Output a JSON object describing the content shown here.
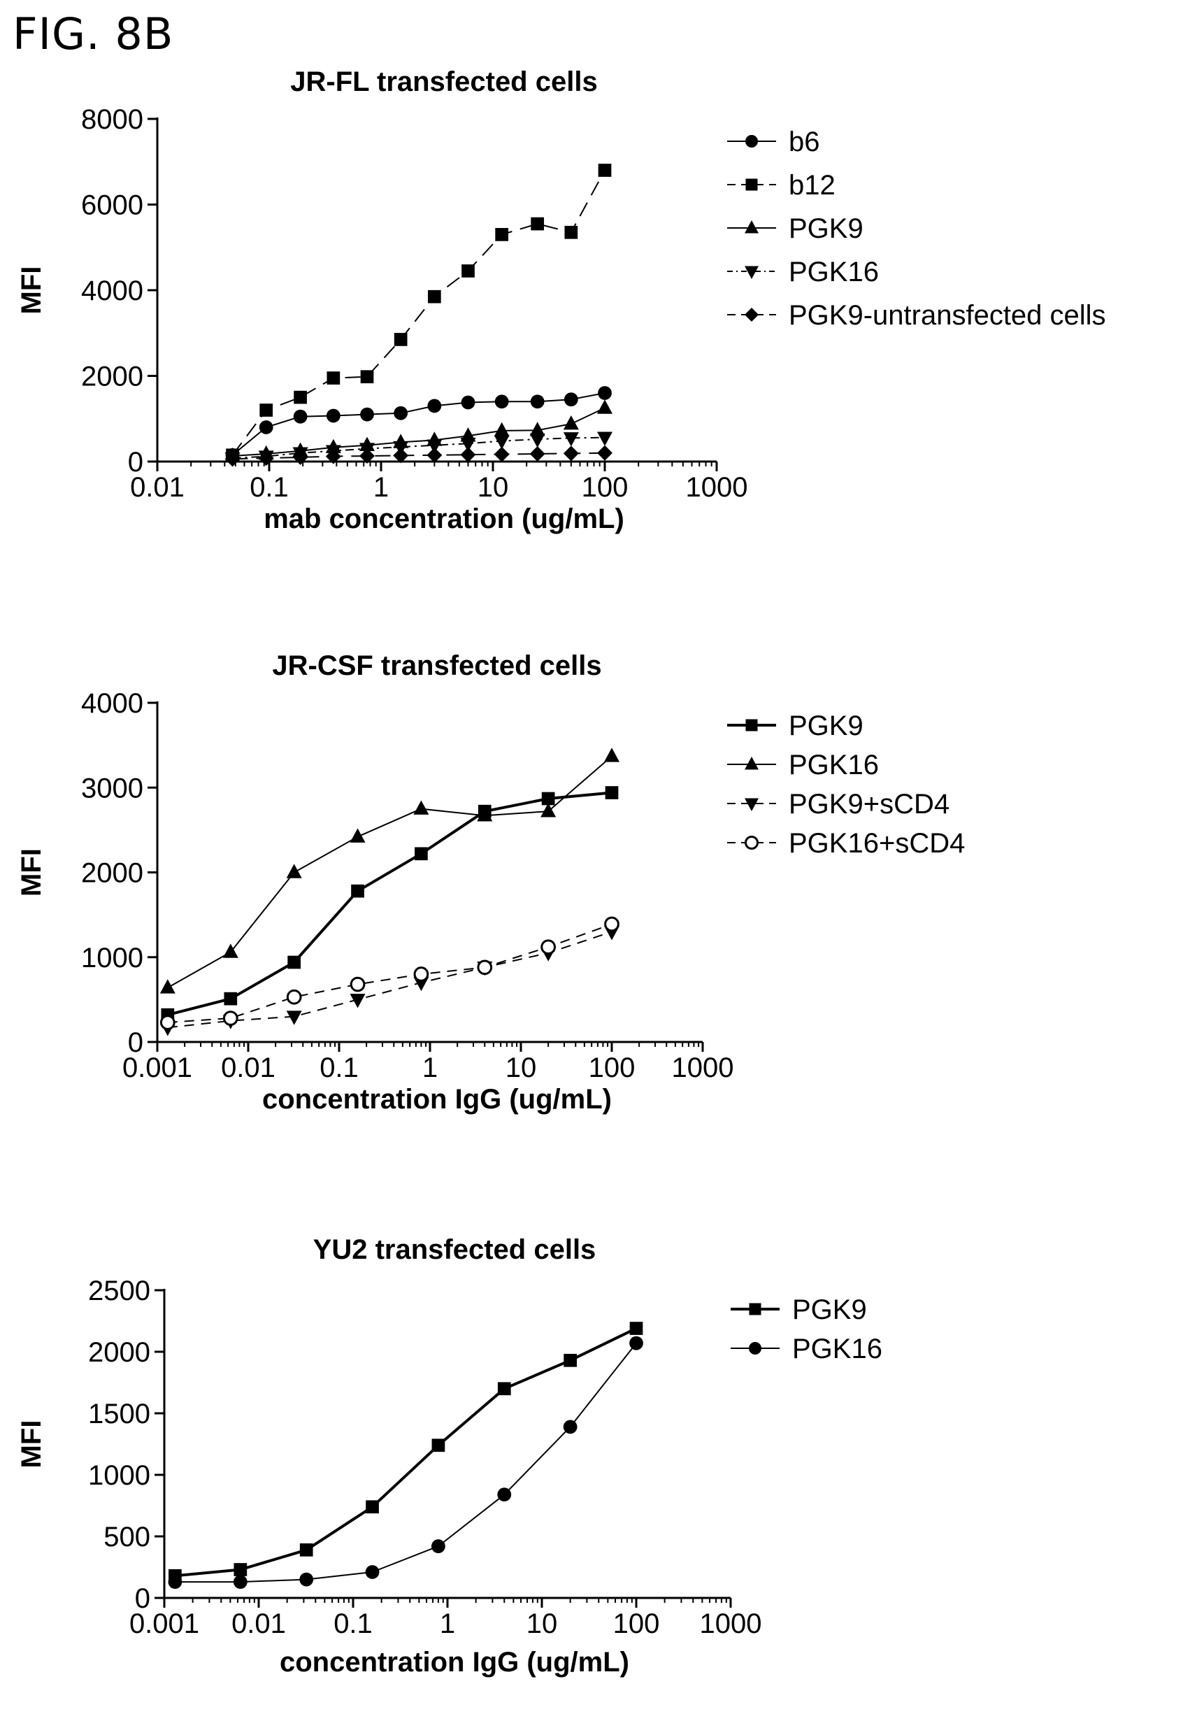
{
  "figure_label": "FIG. 8B",
  "chart_data": [
    {
      "type": "line",
      "title": "JR-FL transfected cells",
      "xlabel": "mab concentration (ug/mL)",
      "ylabel": "MFI",
      "xscale": "log",
      "xlim": [
        0.01,
        1000
      ],
      "ylim": [
        0,
        8000
      ],
      "xticks": [
        "0.01",
        "0.1",
        "1",
        "10",
        "100",
        "1000"
      ],
      "yticks": [
        "0",
        "2000",
        "4000",
        "6000",
        "8000"
      ],
      "legend": "right",
      "series": [
        {
          "name": "b6",
          "marker": "circle",
          "dash": "solid",
          "x": [
            0.047,
            0.094,
            0.19,
            0.375,
            0.75,
            1.5,
            3,
            6,
            12,
            25,
            50,
            100
          ],
          "y": [
            150,
            800,
            1050,
            1070,
            1100,
            1130,
            1300,
            1380,
            1400,
            1400,
            1450,
            1600
          ]
        },
        {
          "name": "b12",
          "marker": "square",
          "dash": "long-dash",
          "x": [
            0.047,
            0.094,
            0.19,
            0.375,
            0.75,
            1.5,
            3,
            6,
            12,
            25,
            50,
            100
          ],
          "y": [
            150,
            1200,
            1500,
            1950,
            1980,
            2850,
            3850,
            4450,
            5300,
            5550,
            5350,
            6800
          ]
        },
        {
          "name": "PGK9",
          "marker": "triangle-up",
          "dash": "solid",
          "x": [
            0.047,
            0.094,
            0.19,
            0.375,
            0.75,
            1.5,
            3,
            6,
            12,
            25,
            50,
            100
          ],
          "y": [
            130,
            180,
            250,
            330,
            380,
            450,
            500,
            600,
            720,
            730,
            880,
            1250
          ]
        },
        {
          "name": "PGK16",
          "marker": "triangle-down",
          "dash": "dash-dot",
          "x": [
            0.047,
            0.094,
            0.19,
            0.375,
            0.75,
            1.5,
            3,
            6,
            12,
            25,
            50,
            100
          ],
          "y": [
            80,
            120,
            200,
            250,
            300,
            340,
            380,
            420,
            480,
            520,
            550,
            560
          ]
        },
        {
          "name": "PGK9-untransfected cells",
          "marker": "diamond",
          "dash": "long-dash",
          "x": [
            0.047,
            0.094,
            0.19,
            0.375,
            0.75,
            1.5,
            3,
            6,
            12,
            25,
            50,
            100
          ],
          "y": [
            60,
            80,
            100,
            120,
            130,
            140,
            150,
            160,
            170,
            180,
            190,
            200
          ]
        }
      ]
    },
    {
      "type": "line",
      "title": "JR-CSF transfected cells",
      "xlabel": "concentration IgG (ug/mL)",
      "ylabel": "MFI",
      "xscale": "log",
      "xlim": [
        0.001,
        1000
      ],
      "ylim": [
        0,
        4000
      ],
      "xticks": [
        "0.001",
        "0.01",
        "0.1",
        "1",
        "10",
        "100",
        "1000"
      ],
      "yticks": [
        "0",
        "1000",
        "2000",
        "3000",
        "4000"
      ],
      "legend": "right",
      "series": [
        {
          "name": "PGK9",
          "marker": "square",
          "dash": "solid",
          "stroke_width": 4,
          "x": [
            0.0013,
            0.0064,
            0.032,
            0.16,
            0.8,
            4,
            20,
            100
          ],
          "y": [
            320,
            510,
            940,
            1780,
            2220,
            2720,
            2870,
            2940
          ]
        },
        {
          "name": "PGK16",
          "marker": "triangle-up",
          "dash": "solid",
          "stroke_width": 2,
          "x": [
            0.0013,
            0.0064,
            0.032,
            0.16,
            0.8,
            4,
            20,
            100
          ],
          "y": [
            640,
            1060,
            2000,
            2420,
            2750,
            2670,
            2720,
            3370
          ]
        },
        {
          "name": "PGK9+sCD4",
          "marker": "triangle-down",
          "dash": "dash",
          "stroke_width": 2,
          "x": [
            0.0013,
            0.0064,
            0.032,
            0.16,
            0.8,
            4,
            20,
            100
          ],
          "y": [
            170,
            250,
            300,
            500,
            700,
            880,
            1050,
            1300
          ]
        },
        {
          "name": "PGK16+sCD4",
          "marker": "open-circle",
          "dash": "dash",
          "stroke_width": 2,
          "x": [
            0.0013,
            0.0064,
            0.032,
            0.16,
            0.8,
            4,
            20,
            100
          ],
          "y": [
            230,
            280,
            530,
            680,
            800,
            880,
            1120,
            1390
          ]
        }
      ]
    },
    {
      "type": "line",
      "title": "YU2 transfected cells",
      "xlabel": "concentration IgG (ug/mL)",
      "ylabel": "MFI",
      "xscale": "log",
      "xlim": [
        0.001,
        1000
      ],
      "ylim": [
        0,
        2500
      ],
      "xticks": [
        "0.001",
        "0.01",
        "0.1",
        "1",
        "10",
        "100",
        "1000"
      ],
      "yticks": [
        "0",
        "500",
        "1000",
        "1500",
        "2000",
        "2500"
      ],
      "legend": "right",
      "series": [
        {
          "name": "PGK9",
          "marker": "square",
          "dash": "solid",
          "stroke_width": 4,
          "x": [
            0.0013,
            0.0064,
            0.032,
            0.16,
            0.8,
            4,
            20,
            100
          ],
          "y": [
            180,
            230,
            390,
            740,
            1240,
            1700,
            1930,
            2190
          ]
        },
        {
          "name": "PGK16",
          "marker": "circle",
          "dash": "solid",
          "stroke_width": 2,
          "x": [
            0.0013,
            0.0064,
            0.032,
            0.16,
            0.8,
            4,
            20,
            100
          ],
          "y": [
            130,
            130,
            150,
            210,
            420,
            840,
            1390,
            2070
          ]
        }
      ]
    }
  ]
}
